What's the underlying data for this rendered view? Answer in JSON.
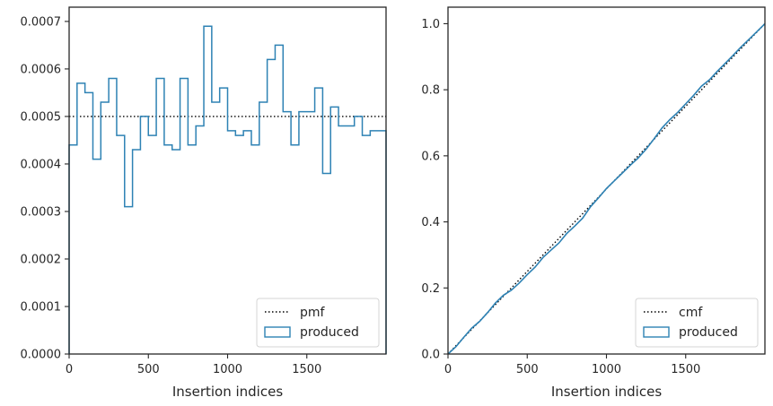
{
  "chart_data": [
    {
      "type": "histogram",
      "xlabel": "Insertion indices",
      "ylabel": "",
      "xlim": [
        0,
        2000
      ],
      "ylim": [
        0,
        0.00073
      ],
      "xticks": [
        0,
        500,
        1000,
        1500
      ],
      "yticks": [
        0,
        0.0001,
        0.0002,
        0.0003,
        0.0004,
        0.0005,
        0.0006,
        0.0007
      ],
      "ytick_labels": [
        "0.0000",
        "0.0001",
        "0.0002",
        "0.0003",
        "0.0004",
        "0.0005",
        "0.0006",
        "0.0007"
      ],
      "grid": false,
      "legend_position": "lower-right",
      "series": [
        {
          "name": "pmf",
          "style": "dotted",
          "color": "#000000",
          "value": 0.0005
        },
        {
          "name": "produced",
          "style": "step",
          "color": "#2e82b4",
          "bin_edges": [
            0,
            50,
            100,
            150,
            200,
            250,
            300,
            350,
            400,
            450,
            500,
            550,
            600,
            650,
            700,
            750,
            800,
            850,
            900,
            950,
            1000,
            1050,
            1100,
            1150,
            1200,
            1250,
            1300,
            1350,
            1400,
            1450,
            1500,
            1550,
            1600,
            1650,
            1700,
            1750,
            1800,
            1850,
            1900,
            1950,
            2000
          ],
          "values": [
            0.00044,
            0.00057,
            0.00055,
            0.00041,
            0.00053,
            0.00058,
            0.00046,
            0.00031,
            0.00043,
            0.0005,
            0.00046,
            0.00058,
            0.00044,
            0.00043,
            0.00058,
            0.00044,
            0.00048,
            0.00069,
            0.00053,
            0.00056,
            0.00047,
            0.00046,
            0.00047,
            0.00044,
            0.00053,
            0.00062,
            0.00065,
            0.00051,
            0.00044,
            0.00051,
            0.00051,
            0.00056,
            0.00038,
            0.00052,
            0.00048,
            0.00048,
            0.0005,
            0.00046,
            0.00047,
            0.00047
          ]
        }
      ]
    },
    {
      "type": "line",
      "xlabel": "Insertion indices",
      "ylabel": "",
      "xlim": [
        0,
        2000
      ],
      "ylim": [
        0,
        1.05
      ],
      "xticks": [
        0,
        500,
        1000,
        1500
      ],
      "yticks": [
        0,
        0.2,
        0.4,
        0.6,
        0.8,
        1.0
      ],
      "ytick_labels": [
        "0.0",
        "0.2",
        "0.4",
        "0.6",
        "0.8",
        "1.0"
      ],
      "grid": false,
      "legend_position": "lower-right",
      "series": [
        {
          "name": "cmf",
          "style": "dotted",
          "color": "#000000",
          "x": [
            0,
            2000
          ],
          "y": [
            0,
            1.0
          ]
        },
        {
          "name": "produced",
          "style": "cumulative-step",
          "color": "#2e82b4",
          "derived_from": "produced"
        }
      ]
    }
  ]
}
